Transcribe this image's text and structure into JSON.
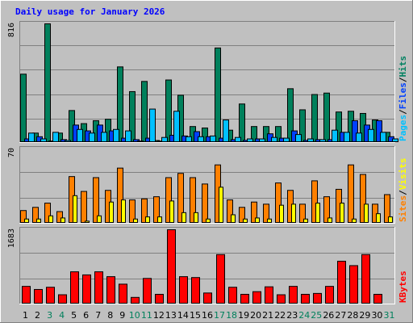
{
  "chart_data": {
    "type": "bar",
    "title": "Daily usage for January 2026",
    "days": [
      "1",
      "2",
      "3",
      "4",
      "5",
      "6",
      "7",
      "8",
      "9",
      "10",
      "11",
      "12",
      "13",
      "14",
      "15",
      "16",
      "17",
      "18",
      "19",
      "20",
      "21",
      "22",
      "23",
      "24",
      "25",
      "26",
      "27",
      "28",
      "29",
      "30",
      "31"
    ],
    "weekend_days": [
      "3",
      "4",
      "10",
      "11",
      "17",
      "18",
      "24",
      "25",
      "31"
    ],
    "panels": [
      {
        "id": "hits-files-pages",
        "max_label": "816",
        "max": 816,
        "legend": [
          "Pages",
          "/",
          "Files",
          "/",
          "Hits"
        ],
        "legend_colors": [
          "#00c0ff",
          "#000000",
          "#0040ff",
          "#000000",
          "#008060"
        ],
        "series": [
          {
            "name": "Hits",
            "color": "#00805c",
            "values": [
              470,
              65,
              816,
              65,
              220,
              130,
              150,
              160,
              520,
              350,
              420,
              14,
              430,
              325,
              110,
              100,
              650,
              85,
              265,
              110,
              110,
              110,
              370,
              225,
              330,
              340,
              210,
              215,
              200,
              155,
              70
            ]
          },
          {
            "name": "Files",
            "color": "#0040ff",
            "values": [
              25,
              40,
              10,
              20,
              120,
              80,
              120,
              80,
              30,
              20,
              30,
              10,
              50,
              45,
              75,
              40,
              30,
              20,
              15,
              25,
              60,
              30,
              80,
              15,
              20,
              20,
              70,
              150,
              120,
              150,
              40
            ]
          },
          {
            "name": "Pages",
            "color": "#00c0ff",
            "values": [
              65,
              25,
              70,
              14,
              90,
              65,
              70,
              90,
              80,
              10,
              230,
              35,
              215,
              40,
              40,
              45,
              155,
              35,
              25,
              25,
              35,
              30,
              55,
              25,
              20,
              85,
              70,
              65,
              90,
              70,
              25
            ]
          }
        ]
      },
      {
        "id": "sites-visits",
        "max_label": "70",
        "max": 70,
        "legend": [
          "Sites",
          "/",
          "Visits"
        ],
        "legend_colors": [
          "#ff8000",
          "#000000",
          "#ffff00"
        ],
        "series": [
          {
            "name": "Sites",
            "color": "#ff8000",
            "values": [
              12,
              15,
              19,
              11,
              44,
              30,
              43,
              31,
              52,
              22,
              23,
              25,
              43,
              47,
              43,
              37,
              55,
              22,
              15,
              20,
              18,
              38,
              31,
              18,
              40,
              25,
              32,
              55,
              46,
              18,
              27
            ]
          },
          {
            "name": "Visits",
            "color": "#ffff00",
            "values": [
              4,
              4,
              7,
              5,
              26,
              2,
              7,
              20,
              22,
              4,
              6,
              6,
              21,
              10,
              10,
              4,
              34,
              8,
              4,
              5,
              4,
              17,
              18,
              4,
              19,
              5,
              19,
              4,
              18,
              9,
              6
            ]
          }
        ]
      },
      {
        "id": "kbytes",
        "max_label": "1683",
        "max": 1683,
        "legend": [
          "KBytes"
        ],
        "legend_colors": [
          "#ff0000"
        ],
        "series": [
          {
            "name": "KBytes",
            "color": "#ff0000",
            "values": [
              400,
              330,
              380,
              210,
              730,
              660,
              730,
              620,
              450,
              150,
              580,
              220,
              1683,
              620,
              600,
              250,
              1120,
              380,
              220,
              280,
              390,
              210,
              400,
              220,
              240,
              400,
              970,
              870,
              1120,
              220,
              0
            ]
          }
        ]
      }
    ]
  }
}
